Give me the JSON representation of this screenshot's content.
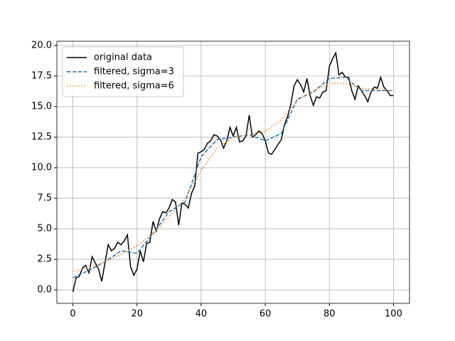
{
  "chart_data": {
    "type": "line",
    "legend": "upper left",
    "grid": true,
    "xlim": [
      -5,
      105
    ],
    "ylim": [
      -1.1,
      20.35
    ],
    "xticks": [
      0,
      20,
      40,
      60,
      80,
      100
    ],
    "yticks": [
      {
        "value": 0,
        "label": "0.0"
      },
      2.5,
      {
        "value": 5,
        "label": "5.0"
      },
      7.5,
      {
        "value": 10,
        "label": "10.0"
      },
      12.5,
      {
        "value": 15,
        "label": "15.0"
      },
      17.5,
      {
        "value": 20,
        "label": "20.0"
      }
    ],
    "series": [
      {
        "name": "original data",
        "color": "#000000",
        "dash": "solid",
        "x": [
          0,
          1,
          2,
          3,
          4,
          5,
          6,
          7,
          8,
          9,
          10,
          11,
          12,
          13,
          14,
          15,
          16,
          17,
          18,
          19,
          20,
          21,
          22,
          23,
          24,
          25,
          26,
          27,
          28,
          29,
          30,
          31,
          32,
          33,
          34,
          35,
          36,
          37,
          38,
          39,
          40,
          41,
          42,
          43,
          44,
          45,
          46,
          47,
          48,
          49,
          50,
          51,
          52,
          53,
          54,
          55,
          56,
          57,
          58,
          59,
          60,
          61,
          62,
          63,
          64,
          65,
          66,
          67,
          68,
          69,
          70,
          71,
          72,
          73,
          74,
          75,
          76,
          77,
          78,
          79,
          80,
          81,
          82,
          83,
          84,
          85,
          86,
          87,
          88,
          89,
          90,
          91,
          92,
          93,
          94,
          95,
          96,
          97,
          98,
          99,
          100
        ],
        "values": [
          -0.15,
          1.0,
          1.1,
          1.8,
          2.0,
          1.4,
          2.7,
          2.2,
          1.7,
          0.7,
          2.2,
          3.7,
          3.2,
          3.4,
          3.9,
          3.7,
          4.0,
          4.5,
          1.9,
          1.2,
          1.7,
          3.2,
          2.3,
          3.8,
          3.9,
          5.6,
          4.8,
          5.8,
          6.4,
          6.3,
          6.7,
          7.4,
          7.2,
          5.3,
          7.1,
          7.0,
          6.7,
          7.9,
          8.5,
          11.2,
          11.3,
          11.5,
          12.0,
          12.2,
          12.7,
          12.6,
          12.3,
          11.6,
          12.2,
          13.3,
          12.6,
          13.3,
          12.1,
          12.2,
          12.6,
          14.3,
          12.5,
          12.7,
          13.0,
          12.8,
          12.2,
          11.2,
          11.1,
          11.5,
          11.9,
          12.3,
          13.5,
          14.2,
          15.2,
          16.7,
          17.2,
          16.8,
          16.2,
          17.3,
          15.9,
          15.1,
          15.8,
          15.7,
          16.2,
          16.3,
          18.3,
          18.9,
          19.4,
          17.6,
          17.8,
          17.4,
          17.4,
          16.3,
          15.6,
          16.7,
          16.3,
          15.9,
          15.4,
          16.2,
          16.6,
          16.5,
          17.4,
          16.6,
          16.3,
          15.9,
          15.9
        ]
      },
      {
        "name": "filtered, sigma=3",
        "color": "#1f77b4",
        "dash": "dashed",
        "x": [
          0,
          5,
          10,
          15,
          20,
          25,
          30,
          35,
          40,
          45,
          50,
          55,
          60,
          65,
          70,
          75,
          80,
          85,
          90,
          95,
          100
        ],
        "values": [
          1.0,
          1.6,
          2.3,
          3.2,
          3.0,
          4.6,
          6.4,
          7.2,
          10.9,
          12.3,
          12.5,
          12.7,
          12.2,
          12.8,
          15.6,
          16.2,
          17.3,
          17.4,
          16.3,
          16.3,
          16.3
        ]
      },
      {
        "name": "filtered, sigma=6",
        "color": "#ff7f0e",
        "dash": "dotted",
        "x": [
          0,
          5,
          10,
          15,
          20,
          25,
          30,
          35,
          40,
          45,
          50,
          55,
          60,
          65,
          70,
          75,
          80,
          85,
          90,
          95,
          100
        ],
        "values": [
          1.5,
          1.8,
          2.3,
          2.9,
          3.6,
          4.6,
          6.0,
          7.5,
          9.8,
          11.6,
          12.5,
          12.7,
          13.0,
          13.9,
          15.5,
          16.3,
          16.9,
          16.9,
          16.5,
          16.4,
          16.3
        ]
      }
    ]
  }
}
